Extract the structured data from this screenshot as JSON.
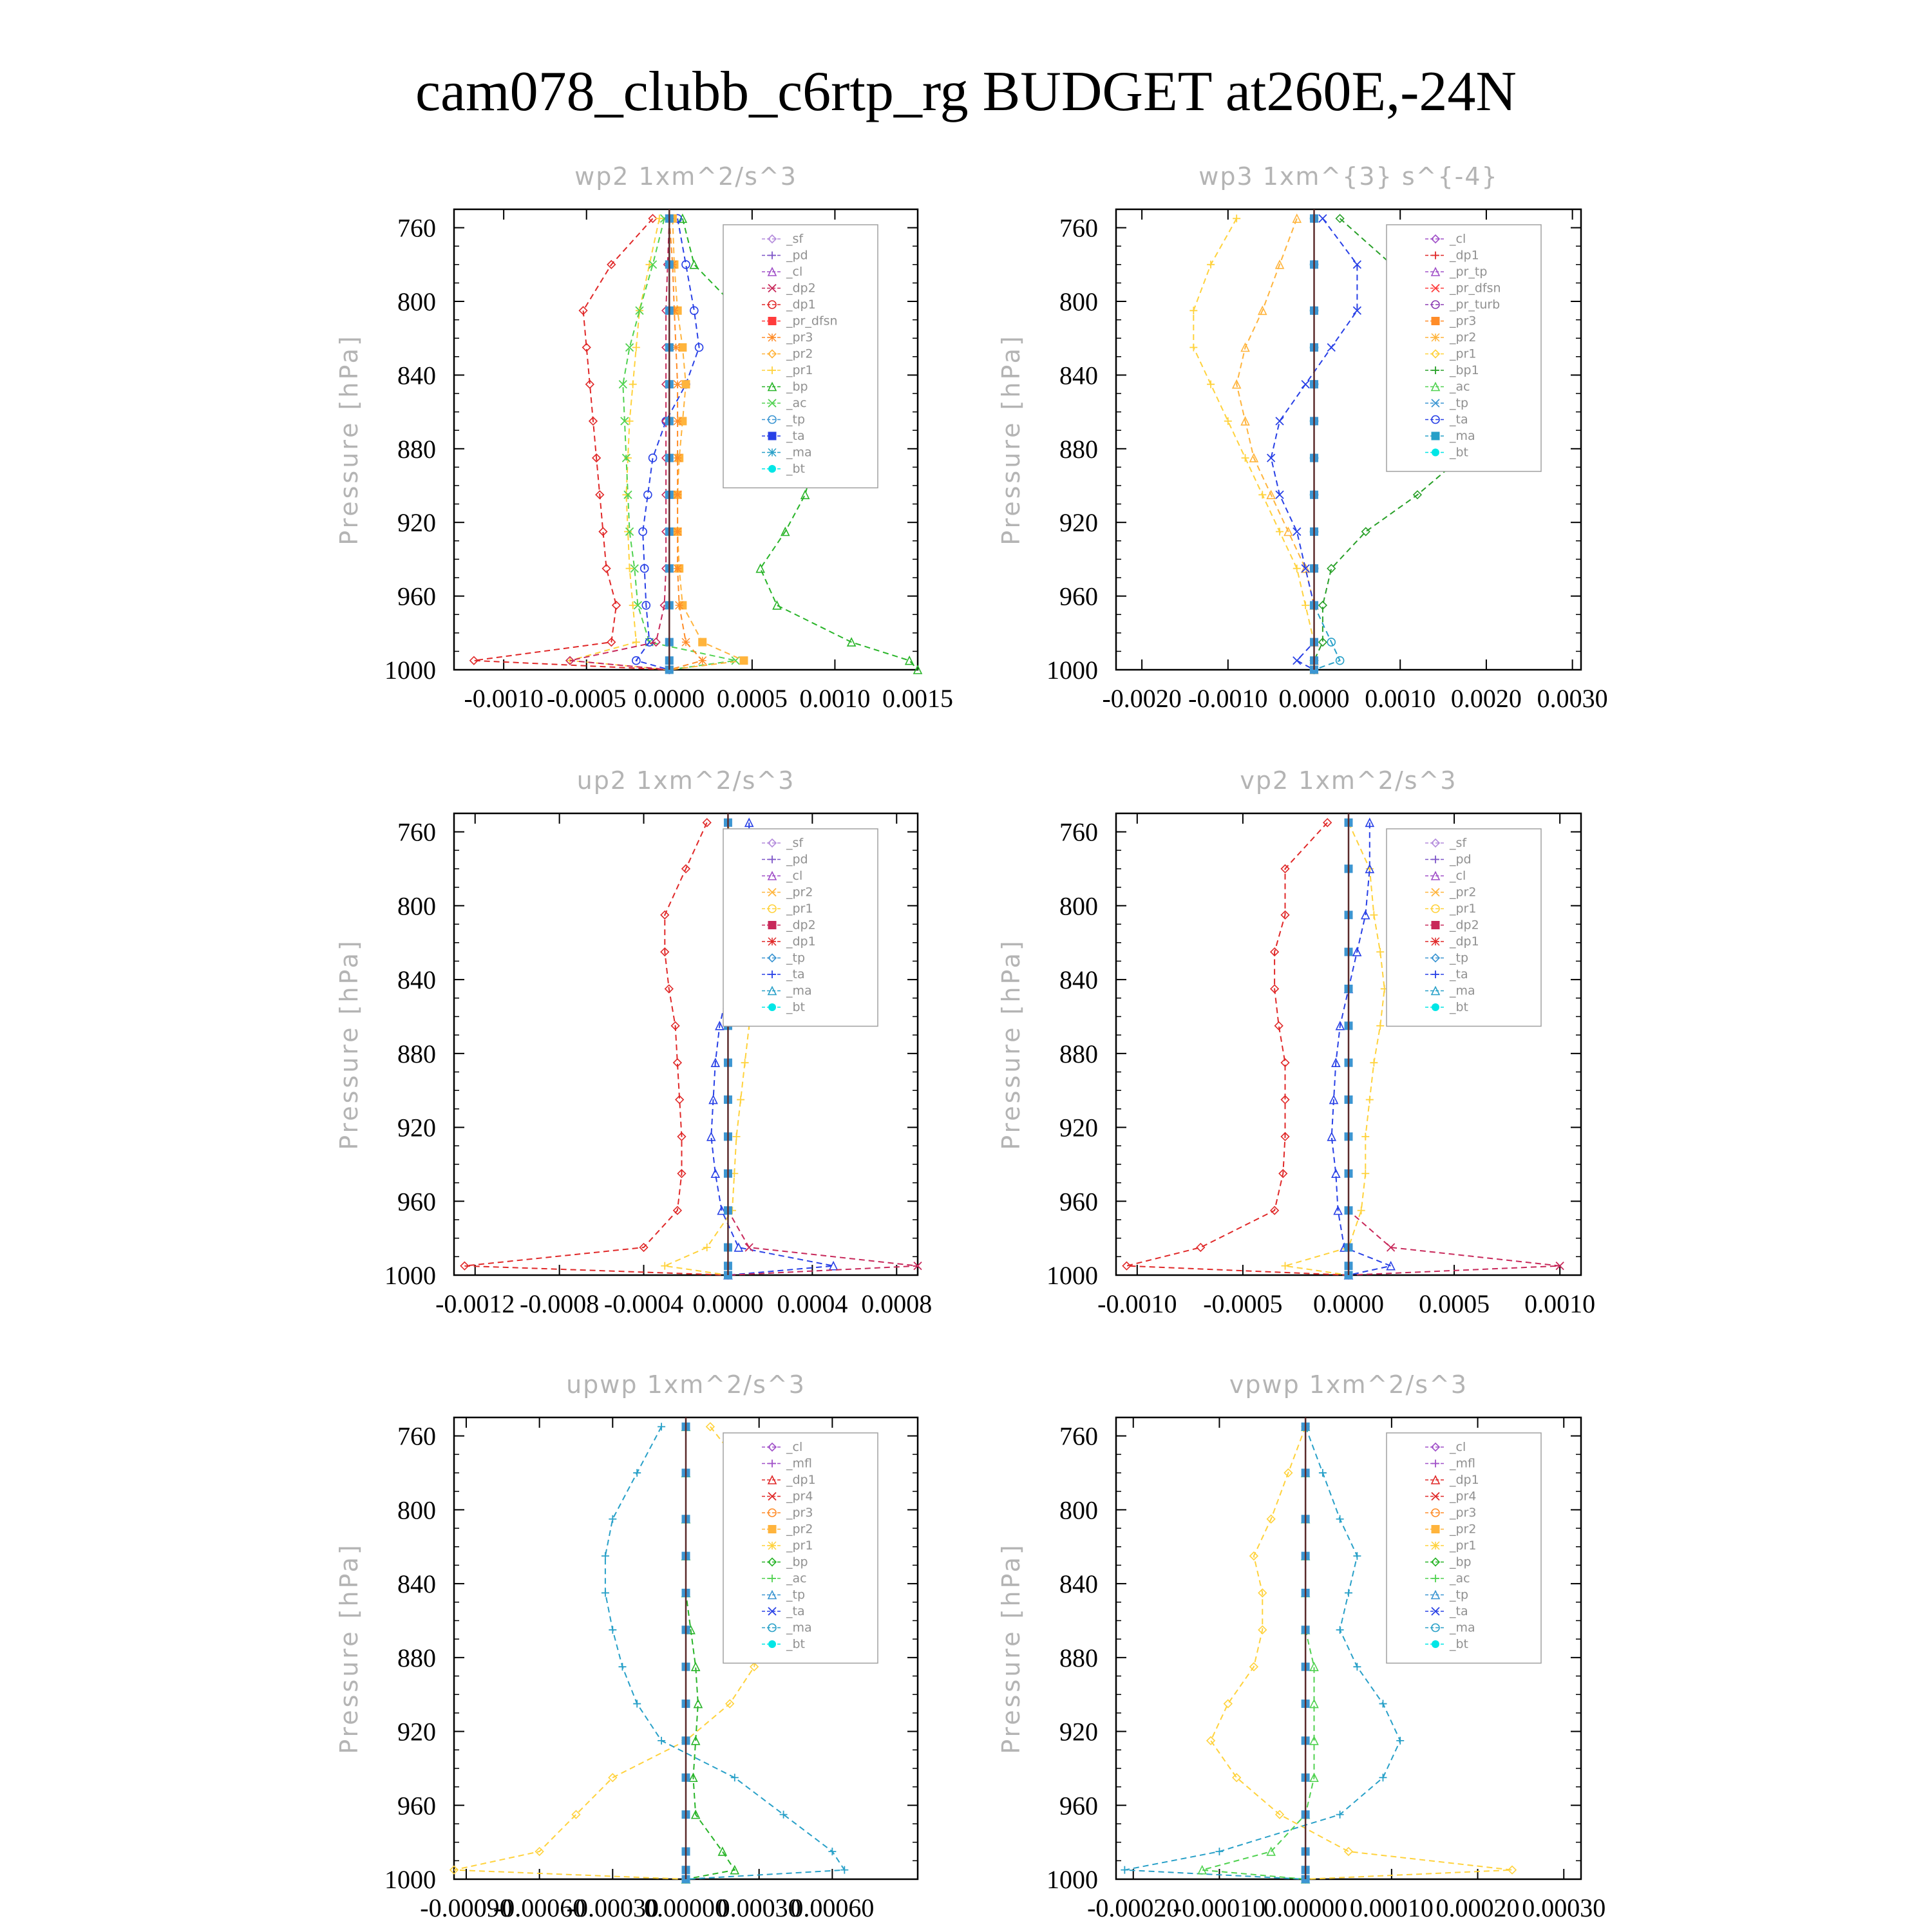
{
  "title": "cam078_clubb_c6rtp_rg  BUDGET at260E,-24N",
  "series_colors": {
    "_sf": "#b48cdc",
    "_pd": "#7d55c8",
    "_cl": "#a050c8",
    "_dp2": "#c8285a",
    "_dp1": "#e02828",
    "_pr_dfsn": "#ff3c3c",
    "_pr3": "#ff8c28",
    "_pr2": "#ffb43c",
    "_pr1": "#ffd23c",
    "_bp": "#28b428",
    "_ac": "#50d250",
    "_tp": "#3c96d2",
    "_ta": "#2840e6",
    "_ma": "#28a0c8",
    "_bt": "#00e6e6",
    "_dp1_wp3": "#7d55c8",
    "_pr_tp": "#a050c8",
    "_pr_turb": "#8c3cb4",
    "_bp1": "#28a028",
    "_pr4": "#e02828",
    "_mfl": "#a050c8"
  },
  "chart_data": [
    {
      "type": "line",
      "title": "wp2   1xm^2/s^3",
      "ylabel": "Pressure [hPa]",
      "ylim": [
        1000,
        750
      ],
      "yticks": [
        "760",
        "800",
        "840",
        "880",
        "920",
        "960",
        "1000"
      ],
      "xlim": [
        -0.0013,
        0.0015
      ],
      "xticks": [
        "-0.0010",
        "-0.0005",
        "0.0000",
        "0.0005",
        "0.0010",
        "0.0015"
      ],
      "legend": [
        "_sf",
        "_pd",
        "_cl",
        "_dp2",
        "_dp1",
        "_pr_dfsn",
        "_pr3",
        "_pr2",
        "_pr1",
        "_bp",
        "_ac",
        "_tp",
        "_ta",
        "_ma",
        "_bt"
      ],
      "legend_position": "top-right",
      "pressure": [
        755,
        780,
        805,
        825,
        845,
        865,
        885,
        905,
        925,
        945,
        965,
        985,
        995,
        1000
      ],
      "series": [
        {
          "name": "_dp1",
          "values": [
            -0.0001,
            -0.00035,
            -0.00052,
            -0.0005,
            -0.00048,
            -0.00046,
            -0.00044,
            -0.00042,
            -0.0004,
            -0.00038,
            -0.00032,
            -0.00035,
            -0.00118,
            0.0
          ]
        },
        {
          "name": "_pr1",
          "values": [
            -6e-05,
            -0.00012,
            -0.00018,
            -0.0002,
            -0.00022,
            -0.00024,
            -0.00025,
            -0.00026,
            -0.00025,
            -0.00024,
            -0.00022,
            -0.0002,
            -0.0006,
            0.0
          ]
        },
        {
          "name": "_bp",
          "values": [
            8e-05,
            0.00015,
            0.00042,
            0.00065,
            0.00085,
            0.0009,
            0.00088,
            0.00082,
            0.0007,
            0.00055,
            0.00065,
            0.0011,
            0.00145,
            0.0015
          ]
        },
        {
          "name": "_ac",
          "values": [
            -3e-05,
            -0.0001,
            -0.00018,
            -0.00024,
            -0.00028,
            -0.00027,
            -0.00026,
            -0.00025,
            -0.00024,
            -0.00021,
            -0.00019,
            -0.00012,
            0.0004,
            0.0
          ]
        },
        {
          "name": "_ta",
          "values": [
            5e-05,
            0.0001,
            0.00015,
            0.00018,
            0.0001,
            -2e-05,
            -0.0001,
            -0.00013,
            -0.00016,
            -0.00015,
            -0.00014,
            -0.00012,
            -0.0002,
            0.0
          ]
        },
        {
          "name": "_pr2",
          "values": [
            2e-05,
            3e-05,
            5e-05,
            8e-05,
            0.0001,
            8e-05,
            6e-05,
            5e-05,
            5e-05,
            6e-05,
            8e-05,
            0.0002,
            0.00045,
            0.0
          ]
        },
        {
          "name": "_pr3",
          "values": [
            0.0,
            2e-05,
            3e-05,
            4e-05,
            5e-05,
            5e-05,
            5e-05,
            5e-05,
            5e-05,
            5e-05,
            6e-05,
            0.0001,
            0.0002,
            0.0
          ]
        },
        {
          "name": "_dp2",
          "values": [
            0.0,
            -1e-05,
            -2e-05,
            -2e-05,
            -2e-05,
            -2e-05,
            -2e-05,
            -2e-05,
            -2e-05,
            -2e-05,
            -3e-05,
            -8e-05,
            -0.0006,
            0.0
          ]
        },
        {
          "name": "_tp",
          "values": [
            0.0,
            0.0,
            0.0,
            0.0,
            0.0,
            0.0,
            0.0,
            0.0,
            0.0,
            0.0,
            0.0,
            0.0,
            0.0,
            0.0
          ]
        }
      ]
    },
    {
      "type": "line",
      "title": "wp3   1xm^{3} s^{-4}",
      "ylabel": "Pressure [hPa]",
      "ylim": [
        1000,
        750
      ],
      "yticks": [
        "760",
        "800",
        "840",
        "880",
        "920",
        "960",
        "1000"
      ],
      "xlim": [
        -0.0023,
        0.0031
      ],
      "xticks": [
        "-0.0020",
        "-0.0010",
        "0.0000",
        "0.0010",
        "0.0020",
        "0.0030"
      ],
      "legend": [
        "_cl",
        "_dp1",
        "_pr_tp",
        "_pr_dfsn",
        "_pr_turb",
        "_pr3",
        "_pr2",
        "_pr1",
        "_bp1",
        "_ac",
        "_tp",
        "_ta",
        "_ma",
        "_bt"
      ],
      "legend_position": "top-right",
      "pressure": [
        755,
        780,
        805,
        825,
        845,
        865,
        885,
        905,
        925,
        945,
        965,
        985,
        995,
        1000
      ],
      "series": [
        {
          "name": "_bp1",
          "values": [
            0.0003,
            0.0009,
            0.0015,
            0.002,
            0.0022,
            0.002,
            0.0017,
            0.0012,
            0.0006,
            0.0002,
            0.0001,
            0.0001,
            0.0,
            0.0
          ]
        },
        {
          "name": "_pr1",
          "values": [
            -0.0009,
            -0.0012,
            -0.0014,
            -0.0014,
            -0.0012,
            -0.001,
            -0.0008,
            -0.0006,
            -0.0004,
            -0.0002,
            -0.0001,
            0.0,
            0.0,
            0.0
          ]
        },
        {
          "name": "_pr2",
          "values": [
            -0.0002,
            -0.0004,
            -0.0006,
            -0.0008,
            -0.0009,
            -0.0008,
            -0.0007,
            -0.0005,
            -0.0003,
            -0.0001,
            0.0,
            0.0,
            0.0,
            0.0
          ]
        },
        {
          "name": "_ta",
          "values": [
            0.0001,
            0.0005,
            0.0005,
            0.0002,
            -0.0001,
            -0.0004,
            -0.0005,
            -0.0004,
            -0.0002,
            -0.0001,
            0.0,
            0.0,
            -0.0002,
            0.0
          ]
        },
        {
          "name": "_ma",
          "values": [
            0.0,
            0.0,
            0.0,
            0.0,
            0.0,
            0.0,
            0.0,
            0.0,
            0.0,
            0.0,
            0.0,
            0.0002,
            0.0003,
            0.0
          ]
        },
        {
          "name": "_tp",
          "values": [
            0.0,
            0.0,
            0.0,
            0.0,
            0.0,
            0.0,
            0.0,
            0.0,
            0.0,
            0.0,
            0.0,
            0.0,
            0.0,
            0.0
          ]
        }
      ]
    },
    {
      "type": "line",
      "title": "up2   1xm^2/s^3",
      "ylabel": "Pressure [hPa]",
      "ylim": [
        1000,
        750
      ],
      "yticks": [
        "760",
        "800",
        "840",
        "880",
        "920",
        "960",
        "1000"
      ],
      "xlim": [
        -0.0013,
        0.0009
      ],
      "xticks": [
        "-0.0012",
        "-0.0008",
        "-0.0004",
        "0.0000",
        "0.0004",
        "0.0008"
      ],
      "legend": [
        "_sf",
        "_pd",
        "_cl",
        "_pr2",
        "_pr1",
        "_dp2",
        "_dp1",
        "_tp",
        "_ta",
        "_ma",
        "_bt"
      ],
      "legend_position": "top-right",
      "pressure": [
        755,
        780,
        805,
        825,
        845,
        865,
        885,
        905,
        925,
        945,
        965,
        985,
        995,
        1000
      ],
      "series": [
        {
          "name": "_dp1",
          "values": [
            -0.0001,
            -0.0002,
            -0.0003,
            -0.0003,
            -0.00028,
            -0.00025,
            -0.00024,
            -0.00023,
            -0.00022,
            -0.00022,
            -0.00024,
            -0.0004,
            -0.00125,
            0.0
          ]
        },
        {
          "name": "_pr1",
          "values": [
            0.0,
            3e-05,
            6e-05,
            8e-05,
            0.0001,
            0.0001,
            8e-05,
            6e-05,
            4e-05,
            3e-05,
            2e-05,
            -0.0001,
            -0.0003,
            0.0
          ]
        },
        {
          "name": "_ta",
          "values": [
            0.0001,
            0.0001,
            8e-05,
            4e-05,
            0.0,
            -4e-05,
            -6e-05,
            -7e-05,
            -8e-05,
            -6e-05,
            -3e-05,
            5e-05,
            0.0005,
            0.0
          ]
        },
        {
          "name": "_dp2",
          "values": [
            0.0,
            0.0,
            0.0,
            0.0,
            0.0,
            0.0,
            0.0,
            0.0,
            0.0,
            0.0,
            0.0,
            0.0001,
            0.0009,
            0.0
          ]
        },
        {
          "name": "_tp",
          "values": [
            0.0,
            0.0,
            0.0,
            0.0,
            0.0,
            0.0,
            0.0,
            0.0,
            0.0,
            0.0,
            0.0,
            0.0,
            0.0,
            0.0
          ]
        }
      ]
    },
    {
      "type": "line",
      "title": "vp2   1xm^2/s^3",
      "ylabel": "Pressure [hPa]",
      "ylim": [
        1000,
        750
      ],
      "yticks": [
        "760",
        "800",
        "840",
        "880",
        "920",
        "960",
        "1000"
      ],
      "xlim": [
        -0.0011,
        0.0011
      ],
      "xticks": [
        "-0.0010",
        "-0.0005",
        "0.0000",
        "0.0005",
        "0.0010"
      ],
      "legend": [
        "_sf",
        "_pd",
        "_cl",
        "_pr2",
        "_pr1",
        "_dp2",
        "_dp1",
        "_tp",
        "_ta",
        "_ma",
        "_bt"
      ],
      "legend_position": "top-right",
      "pressure": [
        755,
        780,
        805,
        825,
        845,
        865,
        885,
        905,
        925,
        945,
        965,
        985,
        995,
        1000
      ],
      "series": [
        {
          "name": "_dp1",
          "values": [
            -0.0001,
            -0.0003,
            -0.0003,
            -0.00035,
            -0.00035,
            -0.00033,
            -0.0003,
            -0.0003,
            -0.0003,
            -0.00031,
            -0.00035,
            -0.0007,
            -0.00105,
            0.0
          ]
        },
        {
          "name": "_pr1",
          "values": [
            0.0,
            0.0001,
            0.00012,
            0.00015,
            0.00017,
            0.00015,
            0.00012,
            0.0001,
            8e-05,
            8e-05,
            6e-05,
            0.0,
            -0.0003,
            0.0
          ]
        },
        {
          "name": "_ta",
          "values": [
            0.0001,
            0.0001,
            8e-05,
            4e-05,
            0.0,
            -4e-05,
            -6e-05,
            -7e-05,
            -8e-05,
            -6e-05,
            -5e-05,
            -2e-05,
            0.0002,
            0.0
          ]
        },
        {
          "name": "_dp2",
          "values": [
            0.0,
            0.0,
            0.0,
            0.0,
            0.0,
            0.0,
            0.0,
            0.0,
            0.0,
            0.0,
            0.0,
            0.0002,
            0.001,
            0.0
          ]
        },
        {
          "name": "_tp",
          "values": [
            0.0,
            0.0,
            0.0,
            0.0,
            0.0,
            0.0,
            0.0,
            0.0,
            0.0,
            0.0,
            0.0,
            0.0,
            0.0,
            0.0
          ]
        }
      ]
    },
    {
      "type": "line",
      "title": "upwp   1xm^2/s^3",
      "ylabel": "Pressure [hPa]",
      "ylim": [
        1000,
        750
      ],
      "yticks": [
        "760",
        "800",
        "840",
        "880",
        "920",
        "960",
        "1000"
      ],
      "xlim": [
        -0.00095,
        0.00095
      ],
      "xticks": [
        "-0.00090",
        "-0.00060",
        "-0.00030",
        "0.00000",
        "0.00030",
        "0.00060"
      ],
      "legend": [
        "_cl",
        "_mfl",
        "_dp1",
        "_pr4",
        "_pr3",
        "_pr2",
        "_pr1",
        "_bp",
        "_ac",
        "_tp",
        "_ta",
        "_ma",
        "_bt"
      ],
      "legend_position": "top-right",
      "pressure": [
        755,
        780,
        805,
        825,
        845,
        865,
        885,
        905,
        925,
        945,
        965,
        985,
        995,
        1000
      ],
      "series": [
        {
          "name": "_pr1",
          "values": [
            0.0001,
            0.00025,
            0.00032,
            0.00033,
            0.00032,
            0.0003,
            0.00028,
            0.00018,
            0.0,
            -0.0003,
            -0.00045,
            -0.0006,
            -0.00095,
            0.0
          ]
        },
        {
          "name": "_ma",
          "values": [
            -0.0001,
            -0.0002,
            -0.0003,
            -0.00033,
            -0.00033,
            -0.0003,
            -0.00026,
            -0.0002,
            -0.0001,
            0.0002,
            0.0004,
            0.0006,
            0.00065,
            0.0
          ]
        },
        {
          "name": "_bp",
          "values": [
            0.0,
            0.0,
            0.0,
            0.0,
            0.0,
            2e-05,
            4e-05,
            5e-05,
            4e-05,
            3e-05,
            4e-05,
            0.00015,
            0.0002,
            0.0
          ]
        },
        {
          "name": "_tp",
          "values": [
            0.0,
            0.0,
            0.0,
            0.0,
            0.0,
            0.0,
            0.0,
            0.0,
            0.0,
            0.0,
            0.0,
            0.0,
            0.0,
            0.0
          ]
        }
      ]
    },
    {
      "type": "line",
      "title": "vpwp   1xm^2/s^3",
      "ylabel": "Pressure [hPa]",
      "ylim": [
        1000,
        750
      ],
      "yticks": [
        "760",
        "800",
        "840",
        "880",
        "920",
        "960",
        "1000"
      ],
      "xlim": [
        -0.00022,
        0.00032
      ],
      "xticks": [
        "-0.00020",
        "-0.00010",
        "0.00000",
        "0.00010",
        "0.00020",
        "0.00030"
      ],
      "legend": [
        "_cl",
        "_mfl",
        "_dp1",
        "_pr4",
        "_pr3",
        "_pr2",
        "_pr1",
        "_bp",
        "_ac",
        "_tp",
        "_ta",
        "_ma",
        "_bt"
      ],
      "legend_position": "top-right",
      "pressure": [
        755,
        780,
        805,
        825,
        845,
        865,
        885,
        905,
        925,
        945,
        965,
        985,
        995,
        1000
      ],
      "series": [
        {
          "name": "_pr1",
          "values": [
            0.0,
            -2e-05,
            -4e-05,
            -6e-05,
            -5e-05,
            -5e-05,
            -6e-05,
            -9e-05,
            -0.00011,
            -8e-05,
            -3e-05,
            5e-05,
            0.00024,
            0.0
          ]
        },
        {
          "name": "_ma",
          "values": [
            0.0,
            2e-05,
            4e-05,
            6e-05,
            5e-05,
            4e-05,
            6e-05,
            9e-05,
            0.00011,
            9e-05,
            4e-05,
            -0.0001,
            -0.00021,
            0.0
          ]
        },
        {
          "name": "_ac",
          "values": [
            0.0,
            0.0,
            0.0,
            0.0,
            0.0,
            0.0,
            1e-05,
            1e-05,
            1e-05,
            1e-05,
            0.0,
            -4e-05,
            -0.00012,
            0.0
          ]
        },
        {
          "name": "_tp",
          "values": [
            0.0,
            0.0,
            0.0,
            0.0,
            0.0,
            0.0,
            0.0,
            0.0,
            0.0,
            0.0,
            0.0,
            0.0,
            0.0,
            0.0
          ]
        }
      ]
    }
  ]
}
